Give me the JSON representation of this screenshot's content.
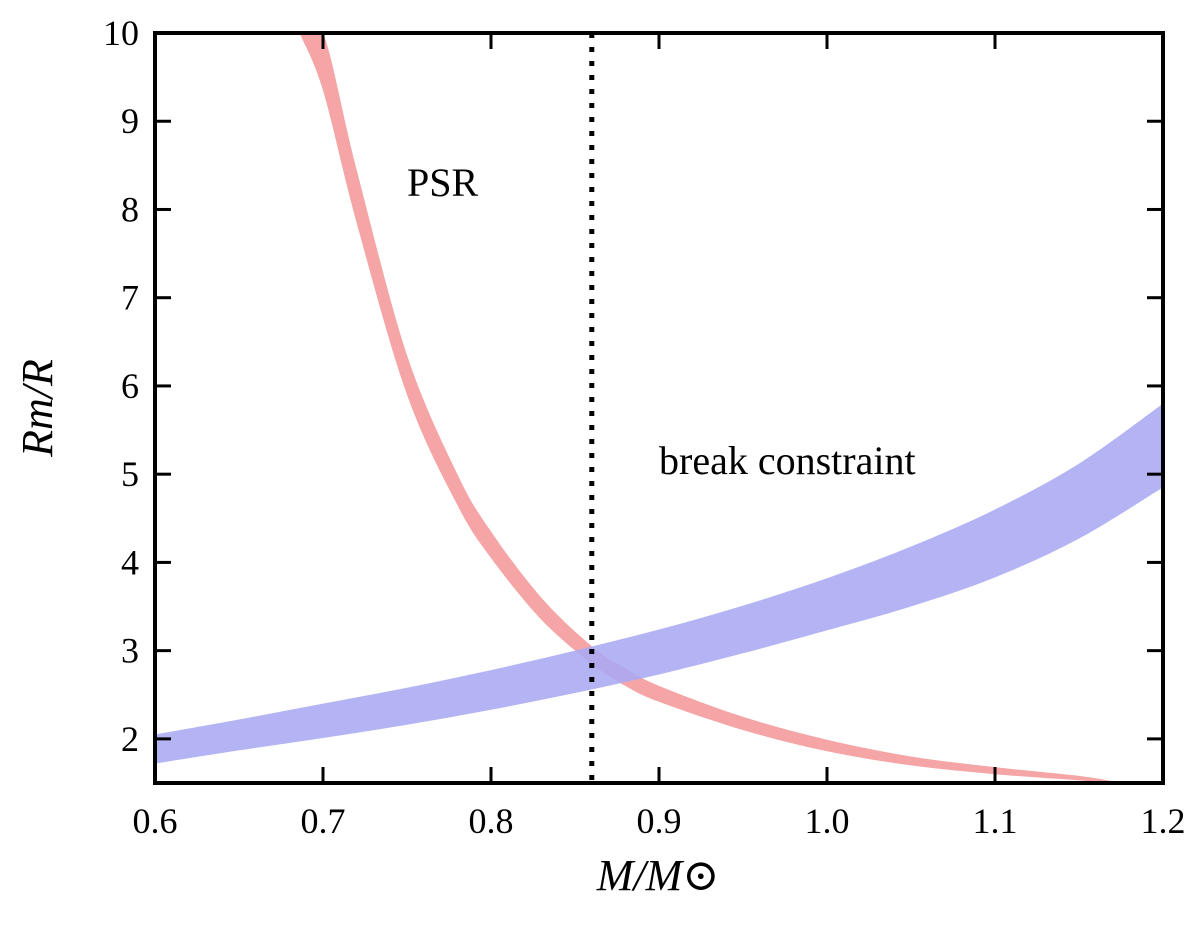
{
  "chart_data": {
    "type": "area",
    "title": "",
    "xlabel": "M/M⊙",
    "ylabel": "Rm/R",
    "xlim": [
      0.6,
      1.2
    ],
    "ylim": [
      1.5,
      10
    ],
    "x_ticks": [
      "0.6",
      "0.7",
      "0.8",
      "0.9",
      "1.0",
      "1.1",
      "1.2"
    ],
    "y_ticks": [
      "2",
      "3",
      "4",
      "5",
      "6",
      "7",
      "8",
      "9",
      "10"
    ],
    "grid": false,
    "series": [
      {
        "name": "PSR",
        "color": "#f4a0a0",
        "x": [
          0.686,
          0.7,
          0.72,
          0.75,
          0.78,
          0.8,
          0.83,
          0.86,
          0.88,
          0.9,
          0.95,
          1.0,
          1.05,
          1.1,
          1.15,
          1.17
        ],
        "lower": [
          10.0,
          9.35,
          7.85,
          5.9,
          4.65,
          4.05,
          3.35,
          2.85,
          2.6,
          2.42,
          2.1,
          1.86,
          1.7,
          1.6,
          1.53,
          1.5
        ],
        "upper": [
          10.0,
          10.0,
          8.45,
          6.35,
          5.0,
          4.35,
          3.6,
          3.05,
          2.8,
          2.6,
          2.25,
          1.99,
          1.8,
          1.68,
          1.58,
          1.52
        ]
      },
      {
        "name": "break constraint",
        "color": "#aaaaf4",
        "x": [
          0.6,
          0.65,
          0.7,
          0.75,
          0.8,
          0.85,
          0.9,
          0.95,
          1.0,
          1.05,
          1.1,
          1.15,
          1.2
        ],
        "lower": [
          1.72,
          1.87,
          2.01,
          2.16,
          2.33,
          2.52,
          2.73,
          2.97,
          3.23,
          3.5,
          3.83,
          4.27,
          4.85
        ],
        "upper": [
          2.05,
          2.22,
          2.4,
          2.58,
          2.78,
          3.0,
          3.24,
          3.51,
          3.82,
          4.18,
          4.6,
          5.12,
          5.8
        ]
      }
    ],
    "vline": {
      "x": 0.86,
      "style": "dotted"
    },
    "annotations": [
      {
        "text": "PSR",
        "x": 0.75,
        "y": 8.15
      },
      {
        "text": "break constraint",
        "x": 0.9,
        "y": 5.0
      }
    ]
  }
}
